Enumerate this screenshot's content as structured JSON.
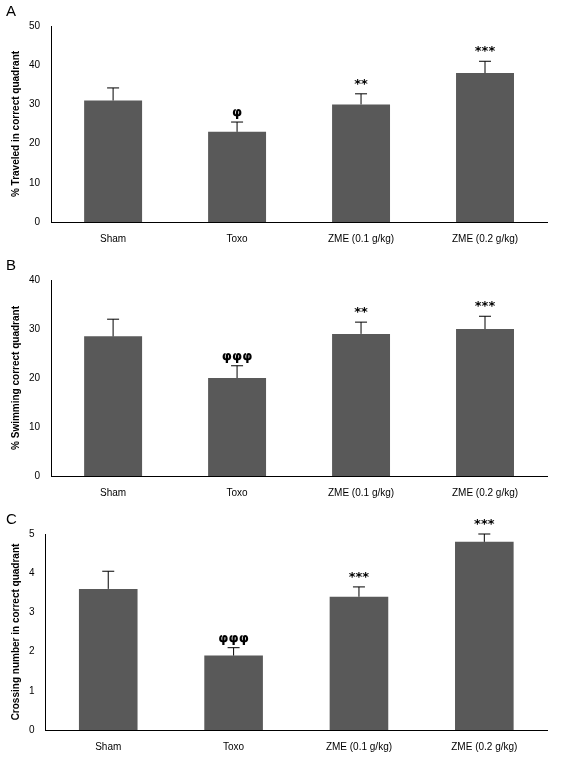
{
  "chart_data": [
    {
      "type": "bar",
      "panel": "A",
      "categories": [
        "Sham",
        "Toxo",
        "ZME (0.1 g/kg)",
        "ZME (0.2 g/kg)"
      ],
      "values": [
        31,
        23,
        30,
        38
      ],
      "errors": [
        3.2,
        2.5,
        2.7,
        3.0
      ],
      "annotations": [
        null,
        "φ",
        "**",
        "***"
      ],
      "y_label": "% Traveled in correct quadrant",
      "color": "#595959",
      "grid": false,
      "ylim": [
        0,
        50
      ],
      "yticks": [
        0,
        10,
        20,
        30,
        40,
        50
      ]
    },
    {
      "type": "bar",
      "panel": "B",
      "categories": [
        "Sham",
        "Toxo",
        "ZME (0.1 g/kg)",
        "ZME (0.2 g/kg)"
      ],
      "values": [
        28.5,
        20,
        29,
        30
      ],
      "errors": [
        3.5,
        2.5,
        2.4,
        2.6
      ],
      "annotations": [
        null,
        "φφφ",
        "**",
        "***"
      ],
      "y_label": "% Swimming correct quadrant",
      "color": "#595959",
      "grid": false,
      "ylim": [
        0,
        40
      ],
      "yticks": [
        0,
        10,
        20,
        30,
        40
      ]
    },
    {
      "type": "bar",
      "panel": "C",
      "categories": [
        "Sham",
        "Toxo",
        "ZME (0.1 g/kg)",
        "ZME (0.2 g/kg)"
      ],
      "values": [
        3.6,
        1.9,
        3.4,
        4.8
      ],
      "errors": [
        0.45,
        0.2,
        0.25,
        0.2
      ],
      "annotations": [
        null,
        "φφφ",
        "***",
        "***"
      ],
      "y_label": "Crossing number in correct quadrant",
      "color": "#595959",
      "grid": false,
      "ylim": [
        0,
        5
      ],
      "yticks": [
        0,
        1,
        2,
        3,
        4,
        5
      ]
    }
  ]
}
